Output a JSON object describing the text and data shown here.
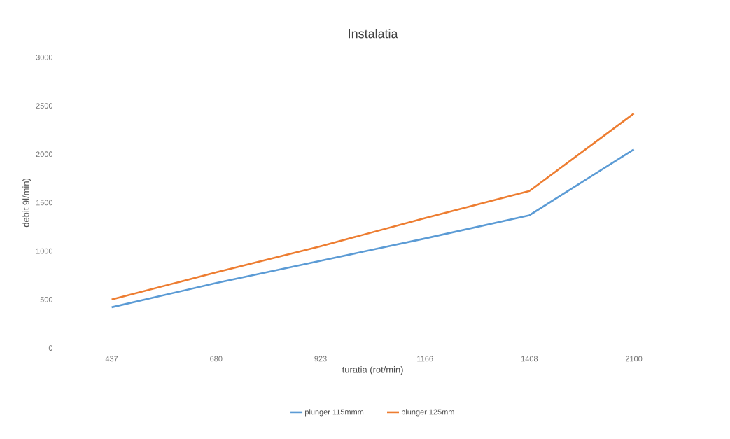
{
  "chart_data": {
    "type": "line",
    "title": "Instalatia",
    "xlabel": "turatia (rot/min)",
    "ylabel": "debit 9l/min)",
    "categories": [
      "437",
      "680",
      "923",
      "1166",
      "1408",
      "2100"
    ],
    "series": [
      {
        "name": "plunger 115mmm",
        "color": "#5b9bd5",
        "values": [
          420,
          670,
          900,
          1130,
          1370,
          2050
        ]
      },
      {
        "name": "plunger 125mm",
        "color": "#ed7d31",
        "values": [
          500,
          780,
          1050,
          1340,
          1620,
          2420
        ]
      }
    ],
    "ylim": [
      0,
      3000
    ],
    "yticks": [
      0,
      500,
      1000,
      1500,
      2000,
      2500,
      3000
    ],
    "grid": false,
    "legend": "bottom",
    "marker": "none",
    "line_style": "solid"
  }
}
